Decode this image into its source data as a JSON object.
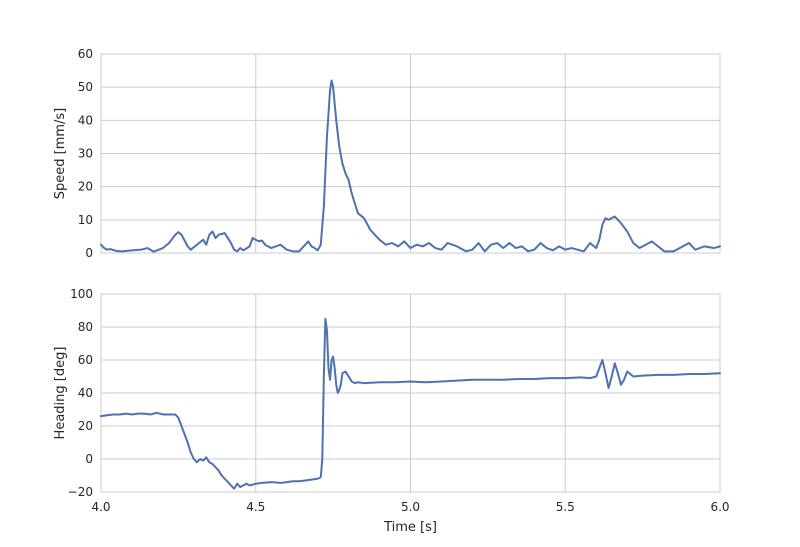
{
  "chart_data": [
    {
      "type": "line",
      "title": "",
      "xlabel": "",
      "ylabel": "Speed [mm/s]",
      "xlim": [
        4.0,
        6.0
      ],
      "ylim": [
        0,
        60
      ],
      "xticks": [
        4.0,
        4.5,
        5.0,
        5.5,
        6.0
      ],
      "yticks": [
        0,
        10,
        20,
        30,
        40,
        50,
        60
      ],
      "grid": true,
      "line_color": "#4c72b0",
      "series": [
        {
          "x": [
            4.0,
            4.01,
            4.02,
            4.03,
            4.05,
            4.07,
            4.1,
            4.13,
            4.15,
            4.17,
            4.2,
            4.22,
            4.24,
            4.25,
            4.26,
            4.28,
            4.29,
            4.31,
            4.33,
            4.34,
            4.35,
            4.36,
            4.37,
            4.38,
            4.4,
            4.42,
            4.43,
            4.44,
            4.45,
            4.46,
            4.48,
            4.49,
            4.5,
            4.51,
            4.52,
            4.53,
            4.55,
            4.58,
            4.6,
            4.62,
            4.64,
            4.66,
            4.67,
            4.68,
            4.69,
            4.7,
            4.71,
            4.72,
            4.73,
            4.74,
            4.745,
            4.75,
            4.76,
            4.77,
            4.78,
            4.79,
            4.8,
            4.81,
            4.82,
            4.83,
            4.85,
            4.87,
            4.89,
            4.9,
            4.92,
            4.94,
            4.96,
            4.98,
            5.0,
            5.02,
            5.04,
            5.06,
            5.08,
            5.1,
            5.12,
            5.15,
            5.18,
            5.2,
            5.22,
            5.24,
            5.26,
            5.28,
            5.3,
            5.32,
            5.34,
            5.36,
            5.38,
            5.4,
            5.42,
            5.44,
            5.46,
            5.48,
            5.5,
            5.52,
            5.54,
            5.56,
            5.58,
            5.6,
            5.61,
            5.62,
            5.63,
            5.64,
            5.65,
            5.66,
            5.67,
            5.68,
            5.7,
            5.72,
            5.74,
            5.76,
            5.78,
            5.8,
            5.82,
            5.85,
            5.88,
            5.9,
            5.92,
            5.95,
            5.98,
            6.0
          ],
          "y": [
            2.5,
            1.5,
            1.0,
            1.2,
            0.6,
            0.5,
            0.8,
            1.0,
            1.5,
            0.4,
            1.5,
            3.0,
            5.5,
            6.3,
            5.5,
            2.0,
            1.0,
            2.5,
            4.0,
            2.5,
            5.5,
            6.5,
            4.5,
            5.5,
            6.0,
            3.0,
            1.0,
            0.5,
            1.5,
            0.8,
            2.0,
            4.5,
            4.0,
            3.5,
            3.8,
            2.5,
            1.5,
            2.5,
            1.0,
            0.5,
            0.5,
            2.5,
            3.5,
            2.0,
            1.5,
            0.8,
            2.5,
            14.0,
            35.0,
            49.0,
            52.0,
            50.0,
            40.0,
            32.0,
            27.0,
            24.0,
            22.0,
            18.0,
            15.0,
            12.0,
            10.5,
            7.0,
            5.0,
            4.0,
            2.5,
            3.0,
            2.0,
            3.5,
            1.5,
            2.5,
            2.0,
            3.0,
            1.5,
            1.0,
            3.0,
            2.0,
            0.5,
            1.0,
            3.0,
            0.5,
            2.5,
            3.0,
            1.5,
            3.0,
            1.5,
            2.0,
            0.5,
            1.0,
            3.0,
            1.5,
            0.8,
            2.0,
            1.0,
            1.5,
            1.0,
            0.5,
            3.0,
            1.5,
            4.0,
            8.5,
            10.5,
            10.0,
            10.5,
            11.0,
            10.0,
            9.0,
            6.5,
            3.0,
            1.5,
            2.5,
            3.5,
            2.0,
            0.5,
            0.5,
            2.0,
            3.0,
            1.0,
            2.0,
            1.5,
            2.0
          ]
        }
      ]
    },
    {
      "type": "line",
      "title": "",
      "xlabel": "Time [s]",
      "ylabel": "Heading [deg]",
      "xlim": [
        4.0,
        6.0
      ],
      "ylim": [
        -20,
        100
      ],
      "xticks": [
        4.0,
        4.5,
        5.0,
        5.5,
        6.0
      ],
      "xtick_labels": [
        "4.0",
        "4.5",
        "5.0",
        "5.5",
        "6.0"
      ],
      "yticks": [
        -20,
        0,
        20,
        40,
        60,
        80,
        100
      ],
      "grid": true,
      "line_color": "#4c72b0",
      "series": [
        {
          "x": [
            4.0,
            4.02,
            4.04,
            4.06,
            4.08,
            4.1,
            4.12,
            4.14,
            4.16,
            4.18,
            4.2,
            4.22,
            4.24,
            4.25,
            4.26,
            4.27,
            4.28,
            4.29,
            4.3,
            4.31,
            4.32,
            4.33,
            4.34,
            4.35,
            4.36,
            4.37,
            4.38,
            4.39,
            4.4,
            4.41,
            4.42,
            4.43,
            4.44,
            4.45,
            4.46,
            4.47,
            4.48,
            4.5,
            4.52,
            4.55,
            4.58,
            4.6,
            4.62,
            4.64,
            4.66,
            4.68,
            4.7,
            4.71,
            4.715,
            4.72,
            4.725,
            4.73,
            4.735,
            4.74,
            4.745,
            4.75,
            4.755,
            4.76,
            4.765,
            4.77,
            4.775,
            4.78,
            4.79,
            4.8,
            4.81,
            4.82,
            4.83,
            4.85,
            4.9,
            4.95,
            5.0,
            5.05,
            5.1,
            5.15,
            5.2,
            5.25,
            5.3,
            5.35,
            5.4,
            5.45,
            5.5,
            5.55,
            5.58,
            5.6,
            5.61,
            5.62,
            5.63,
            5.64,
            5.65,
            5.66,
            5.67,
            5.68,
            5.69,
            5.7,
            5.72,
            5.75,
            5.8,
            5.85,
            5.9,
            5.95,
            6.0
          ],
          "y": [
            26.0,
            26.5,
            27.0,
            27.0,
            27.5,
            27.0,
            27.5,
            27.5,
            27.0,
            28.0,
            27.0,
            27.0,
            27.0,
            25.0,
            20.0,
            15.0,
            10.0,
            4.0,
            0.0,
            -2.0,
            0.0,
            -1.0,
            1.0,
            -2.0,
            -3.0,
            -5.0,
            -7.0,
            -10.0,
            -12.0,
            -14.0,
            -16.0,
            -18.0,
            -15.0,
            -17.0,
            -16.0,
            -15.0,
            -16.0,
            -15.0,
            -14.5,
            -14.0,
            -14.5,
            -14.0,
            -13.5,
            -13.5,
            -13.0,
            -12.5,
            -12.0,
            -11.0,
            0.0,
            50.0,
            85.0,
            78.0,
            55.0,
            48.0,
            60.0,
            62.0,
            55.0,
            45.0,
            40.0,
            42.0,
            45.0,
            52.0,
            53.0,
            50.0,
            47.0,
            46.0,
            46.5,
            46.0,
            46.5,
            46.5,
            47.0,
            46.5,
            47.0,
            47.5,
            48.0,
            48.0,
            48.0,
            48.5,
            48.5,
            49.0,
            49.0,
            49.5,
            49.0,
            50.0,
            55.0,
            60.0,
            52.0,
            43.0,
            50.0,
            58.0,
            52.0,
            45.0,
            48.0,
            53.0,
            50.0,
            50.5,
            51.0,
            51.0,
            51.5,
            51.5,
            52.0
          ]
        }
      ]
    }
  ]
}
